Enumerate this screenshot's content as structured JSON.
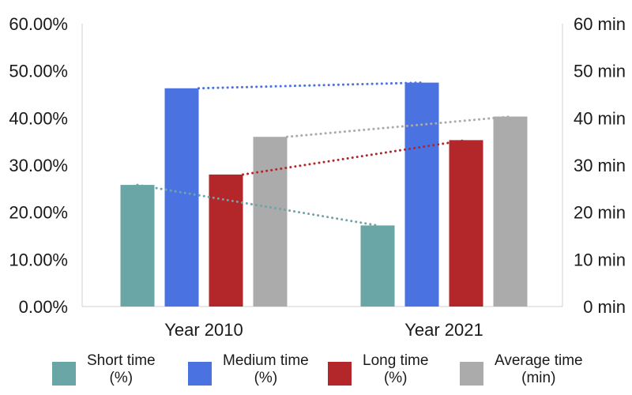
{
  "chart_data": {
    "type": "bar",
    "title": "",
    "categories": [
      "Year 2010",
      "Year 2021"
    ],
    "series": [
      {
        "name": "Short time\n(%)",
        "axis": "left",
        "unit": "%",
        "color": "#6aa6a6",
        "values": [
          25.8,
          17.2
        ]
      },
      {
        "name": "Medium time\n(%)",
        "axis": "left",
        "unit": "%",
        "color": "#4a72e0",
        "values": [
          46.3,
          47.5
        ]
      },
      {
        "name": "Long time\n(%)",
        "axis": "left",
        "unit": "%",
        "color": "#b3262a",
        "values": [
          28.0,
          35.3
        ]
      },
      {
        "name": "Average time\n(min)",
        "axis": "right",
        "unit": "min",
        "color": "#ababab",
        "values": [
          36.0,
          40.3
        ]
      }
    ],
    "y_left": {
      "ylim": [
        0,
        60
      ],
      "ticks": [
        "0.00%",
        "10.00%",
        "20.00%",
        "30.00%",
        "40.00%",
        "50.00%",
        "60.00%"
      ]
    },
    "y_right": {
      "ylim": [
        0,
        60
      ],
      "ticks": [
        "0 min",
        "10 min",
        "20 min",
        "30 min",
        "40 min",
        "50 min",
        "60 min"
      ]
    },
    "trendlines": true,
    "grid": false,
    "legend_position": "bottom"
  }
}
